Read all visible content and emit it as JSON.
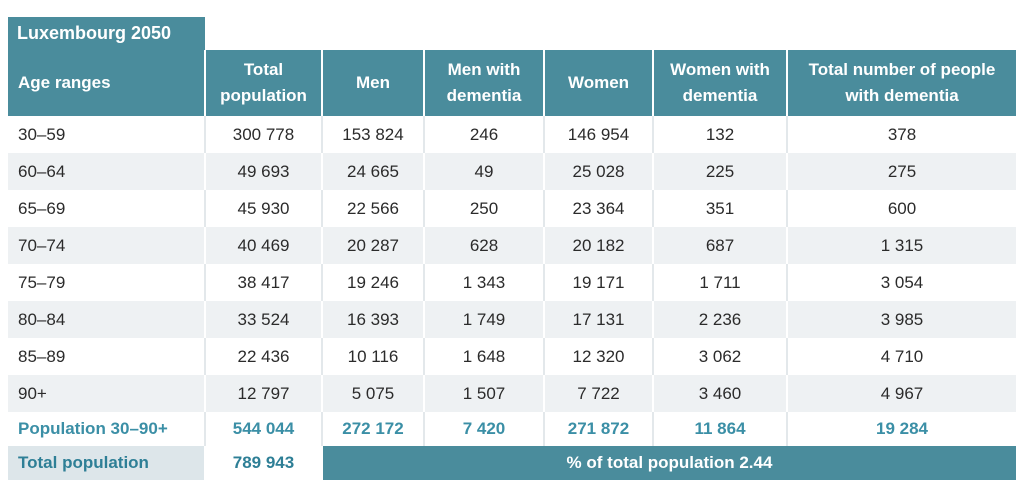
{
  "title": "Luxembourg 2050",
  "headers": [
    "Age ranges",
    "Total population",
    "Men",
    "Men with dementia",
    "Women",
    "Women with dementia",
    "Total number of people with dementia"
  ],
  "rows": [
    [
      "30–59",
      "300 778",
      "153 824",
      "246",
      "146 954",
      "132",
      "378"
    ],
    [
      "60–64",
      "49 693",
      "24 665",
      "49",
      "25 028",
      "225",
      "275"
    ],
    [
      "65–69",
      "45 930",
      "22 566",
      "250",
      "23 364",
      "351",
      "600"
    ],
    [
      "70–74",
      "40 469",
      "20 287",
      "628",
      "20 182",
      "687",
      "1 315"
    ],
    [
      "75–79",
      "38 417",
      "19 246",
      "1 343",
      "19 171",
      "1 711",
      "3 054"
    ],
    [
      "80–84",
      "33 524",
      "16 393",
      "1 749",
      "17 131",
      "2 236",
      "3 985"
    ],
    [
      "85–89",
      "22 436",
      "10 116",
      "1 648",
      "12 320",
      "3 062",
      "4 710"
    ],
    [
      "90+",
      "12 797",
      "5 075",
      "1 507",
      "7 722",
      "3 460",
      "4 967"
    ]
  ],
  "summary": [
    "Population 30–90+",
    "544 044",
    "272 172",
    "7 420",
    "271 872",
    "11 864",
    "19 284"
  ],
  "footer": {
    "label": "Total population",
    "value": "789 943",
    "percent_text": "% of total population 2.44"
  },
  "colors": {
    "header_bg": "#4a8c9c",
    "accent_text": "#3b8fa6",
    "stripe": "#eef1f3"
  }
}
